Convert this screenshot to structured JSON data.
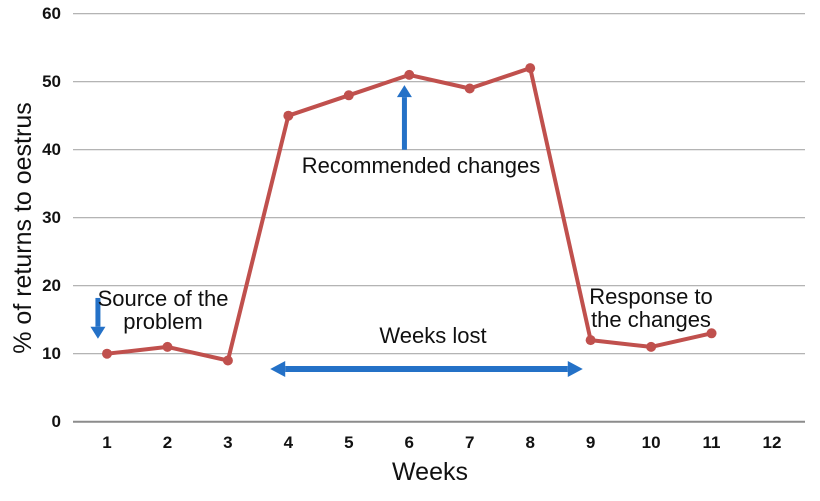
{
  "chart_data": {
    "type": "line",
    "title": "",
    "xlabel": "Weeks",
    "ylabel": "% of returns to oestrus",
    "x": [
      1,
      2,
      3,
      4,
      5,
      6,
      7,
      8,
      9,
      10,
      11
    ],
    "values": [
      10,
      11,
      9,
      45,
      48,
      51,
      49,
      52,
      12,
      11,
      13
    ],
    "categories": [
      "1",
      "2",
      "3",
      "4",
      "5",
      "6",
      "7",
      "8",
      "9",
      "10",
      "11",
      "12"
    ],
    "yticks": [
      0,
      10,
      20,
      30,
      40,
      50,
      60
    ],
    "ylim": [
      0,
      60
    ],
    "grid": "horizontal",
    "legend": "none",
    "line_color": "#c0504d",
    "marker_color": "#c0504d",
    "arrow_color": "#2471c7",
    "grid_color": "#a9a9a9",
    "axis_color": "#8c8c8c",
    "annotations": {
      "source": {
        "label": "Source of the\nproblem",
        "arrow": {
          "dir": "down",
          "week": 0.85,
          "from_value": 18.2,
          "to_value": 12.2
        }
      },
      "recommended": {
        "label": "Recommended changes",
        "arrow": {
          "dir": "up",
          "week": 5.92,
          "from_value": 40.0,
          "to_value": 49.5
        }
      },
      "weeks_lost": {
        "label": "Weeks lost",
        "arrow": {
          "dir": "double-horizontal",
          "value": 7.75,
          "from_week": 3.7,
          "to_week": 8.87
        }
      },
      "response": {
        "label": "Response to\nthe changes",
        "arrow": null
      }
    }
  }
}
